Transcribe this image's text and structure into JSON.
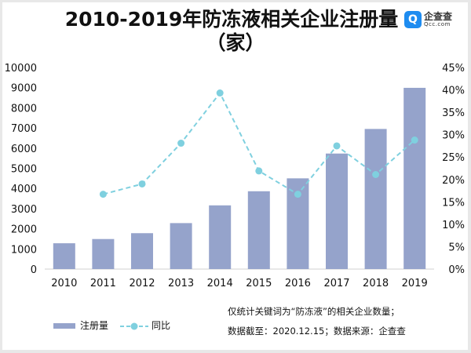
{
  "chart_data": {
    "type": "bar+line",
    "title_line1": "2010-2019年防冻液相关企业注册量",
    "title_line2": "（家）",
    "categories": [
      "2010",
      "2011",
      "2012",
      "2013",
      "2014",
      "2015",
      "2016",
      "2017",
      "2018",
      "2019"
    ],
    "series": [
      {
        "name": "注册量",
        "type": "bar",
        "axis": "left",
        "color": "#95a3cb",
        "values": [
          1280,
          1490,
          1780,
          2280,
          3160,
          3860,
          4500,
          5730,
          6950,
          8990
        ]
      },
      {
        "name": "同比",
        "type": "line",
        "style": "dashed",
        "axis": "right",
        "color": "#7fd0df",
        "values": [
          null,
          16.7,
          19.0,
          28.1,
          39.3,
          21.9,
          16.7,
          27.5,
          21.1,
          28.8
        ]
      }
    ],
    "y_left": {
      "range": [
        0,
        10000
      ],
      "ticks": [
        "0",
        "1000",
        "2000",
        "3000",
        "4000",
        "5000",
        "6000",
        "7000",
        "8000",
        "9000",
        "10000"
      ]
    },
    "y_right": {
      "range": [
        0,
        45
      ],
      "ticks": [
        "0%",
        "5%",
        "10%",
        "15%",
        "20%",
        "25%",
        "30%",
        "35%",
        "40%",
        "45%"
      ]
    },
    "grid": false,
    "legend_position": "bottom-left"
  },
  "notes": {
    "line1": "仅统计关键词为“防冻液”的相关企业数量；",
    "line2": "数据截至：2020.12.15；数据来源：企查查"
  },
  "logo": {
    "name": "企查查",
    "domain": "Qcc.com",
    "icon": "qcc-logo-icon"
  }
}
